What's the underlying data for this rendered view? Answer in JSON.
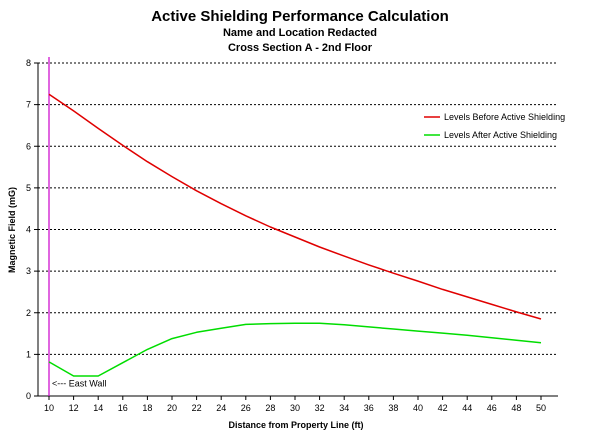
{
  "chart_data": {
    "type": "line",
    "title": "Active Shielding Performance Calculation",
    "subtitles": [
      "Name and Location Redacted",
      "Cross Section A - 2nd Floor"
    ],
    "xlabel": "Distance from Property Line (ft)",
    "ylabel": "Magnetic Field (mG)",
    "xlim": [
      10,
      50
    ],
    "ylim": [
      0,
      8
    ],
    "xticks": [
      10,
      12,
      14,
      16,
      18,
      20,
      22,
      24,
      26,
      28,
      30,
      32,
      34,
      36,
      38,
      40,
      42,
      44,
      46,
      48,
      50
    ],
    "yticks": [
      0,
      1,
      2,
      3,
      4,
      5,
      6,
      7,
      8
    ],
    "grid": "horizontal-dotted",
    "legend_position": "right",
    "series": [
      {
        "name": "Levels Before Active Shielding",
        "color": "#e00000",
        "x": [
          10,
          12,
          14,
          16,
          18,
          20,
          22,
          24,
          26,
          28,
          30,
          32,
          34,
          36,
          38,
          40,
          42,
          44,
          46,
          48,
          50
        ],
        "y": [
          7.25,
          6.85,
          6.43,
          6.02,
          5.63,
          5.27,
          4.93,
          4.62,
          4.33,
          4.06,
          3.82,
          3.58,
          3.36,
          3.15,
          2.95,
          2.76,
          2.56,
          2.38,
          2.2,
          2.02,
          1.85
        ]
      },
      {
        "name": "Levels After Active Shielding",
        "color": "#00dd00",
        "x": [
          10,
          12,
          14,
          16,
          18,
          20,
          22,
          24,
          26,
          28,
          30,
          32,
          34,
          36,
          38,
          40,
          42,
          44,
          46,
          48,
          50
        ],
        "y": [
          0.82,
          0.48,
          0.48,
          0.8,
          1.12,
          1.38,
          1.53,
          1.63,
          1.72,
          1.74,
          1.75,
          1.75,
          1.71,
          1.66,
          1.61,
          1.56,
          1.51,
          1.46,
          1.4,
          1.34,
          1.28
        ]
      }
    ],
    "marker_line": {
      "x": 10,
      "color": "#cc00cc"
    },
    "annotation": {
      "text": "<--- East Wall",
      "x": 10,
      "y": 0.3
    }
  }
}
